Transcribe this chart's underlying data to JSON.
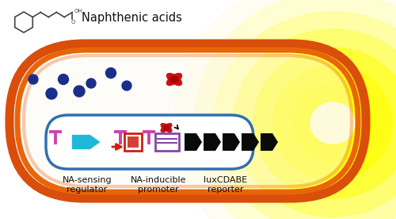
{
  "naphthenic_label": "Naphthenic acids",
  "label1": "NA-sensing\nregulator",
  "label2": "NA-inducible\npromoter",
  "label3": "luxCDABE\nreporter",
  "bg_color": "#ffffff",
  "orange_outer1": "#D94E0A",
  "orange_outer2": "#E8650A",
  "orange_outer3": "#F07828",
  "blue_dot": "#1a2e8a",
  "plasmid_stroke": "#3070b0",
  "pink_T": "#cc44aa",
  "red_box": "#cc2010",
  "purple_box": "#8844aa",
  "red_protein": "#cc1010",
  "cyan_gene": "#20b8d8",
  "glow_yellow": "#ffff00",
  "glow_light": "#ffee44"
}
